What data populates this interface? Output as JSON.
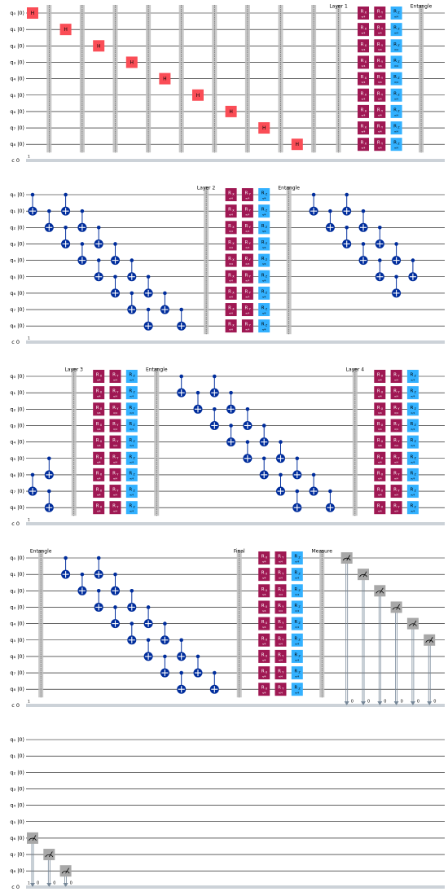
{
  "qubits": [
    "q₀ |0⟩",
    "q₁ |0⟩",
    "q₂ |0⟩",
    "q₃ |0⟩",
    "q₄ |0⟩",
    "q₅ |0⟩",
    "q₆ |0⟩",
    "q₇ |0⟩",
    "q₈ |0⟩"
  ],
  "clbit_label": "c 0",
  "bundle_label": "1",
  "panels": [
    {
      "ops": [
        {
          "op": "h",
          "label": "H",
          "q": 0
        },
        {
          "op": "barrier"
        },
        {
          "op": "h",
          "label": "H",
          "q": 1
        },
        {
          "op": "barrier"
        },
        {
          "op": "h",
          "label": "H",
          "q": 2
        },
        {
          "op": "barrier"
        },
        {
          "op": "h",
          "label": "H",
          "q": 3
        },
        {
          "op": "barrier"
        },
        {
          "op": "h",
          "label": "H",
          "q": 4
        },
        {
          "op": "barrier"
        },
        {
          "op": "h",
          "label": "H",
          "q": 5
        },
        {
          "op": "barrier"
        },
        {
          "op": "h",
          "label": "H",
          "q": 6
        },
        {
          "op": "barrier"
        },
        {
          "op": "h",
          "label": "H",
          "q": 7
        },
        {
          "op": "barrier"
        },
        {
          "op": "h",
          "label": "H",
          "q": 8
        },
        {
          "op": "barrier"
        },
        {
          "op": "barrier",
          "label": "Layer 1"
        },
        {
          "op": "rot",
          "label": "R",
          "sub": "X",
          "param": "π/4"
        },
        {
          "op": "rot",
          "label": "R",
          "sub": "Y",
          "param": "π/4"
        },
        {
          "op": "rot",
          "label": "R",
          "sub": "Z",
          "param": "π/4"
        },
        {
          "op": "barrier",
          "label": "Entangle"
        }
      ]
    },
    {
      "ops": [
        {
          "op": "cx",
          "c": 0,
          "t": 1
        },
        {
          "op": "cx",
          "c": 1,
          "t": 2
        },
        {
          "op": "cx",
          "c": 2,
          "t": 3
        },
        {
          "op": "cx",
          "c": 3,
          "t": 4
        },
        {
          "op": "cx",
          "c": 4,
          "t": 5
        },
        {
          "op": "cx",
          "c": 5,
          "t": 6
        },
        {
          "op": "cx",
          "c": 6,
          "t": 7
        },
        {
          "op": "cx",
          "c": 7,
          "t": 8
        },
        {
          "op": "cx",
          "c": 0,
          "t": 1
        },
        {
          "op": "cx",
          "c": 1,
          "t": 2
        },
        {
          "op": "cx",
          "c": 2,
          "t": 3
        },
        {
          "op": "cx",
          "c": 3,
          "t": 4
        },
        {
          "op": "cx",
          "c": 4,
          "t": 5
        },
        {
          "op": "cx",
          "c": 5,
          "t": 6
        },
        {
          "op": "cx",
          "c": 6,
          "t": 7
        },
        {
          "op": "cx",
          "c": 7,
          "t": 8
        },
        {
          "op": "barrier",
          "label": "Layer 2"
        },
        {
          "op": "rot",
          "label": "R",
          "sub": "X",
          "param": "π/4"
        },
        {
          "op": "rot",
          "label": "R",
          "sub": "Y",
          "param": "π/4"
        },
        {
          "op": "rot",
          "label": "R",
          "sub": "Z",
          "param": "π/4"
        },
        {
          "op": "barrier",
          "label": "Entangle"
        },
        {
          "op": "cx",
          "c": 0,
          "t": 1
        },
        {
          "op": "cx",
          "c": 1,
          "t": 2
        },
        {
          "op": "cx",
          "c": 2,
          "t": 3
        },
        {
          "op": "cx",
          "c": 3,
          "t": 4
        },
        {
          "op": "cx",
          "c": 4,
          "t": 5
        },
        {
          "op": "cx",
          "c": 5,
          "t": 6
        },
        {
          "op": "cx",
          "c": 0,
          "t": 1
        },
        {
          "op": "cx",
          "c": 1,
          "t": 2
        },
        {
          "op": "cx",
          "c": 2,
          "t": 3
        },
        {
          "op": "cx",
          "c": 3,
          "t": 4
        },
        {
          "op": "cx",
          "c": 4,
          "t": 5
        }
      ]
    },
    {
      "ops": [
        {
          "op": "cx",
          "c": 6,
          "t": 7
        },
        {
          "op": "cx",
          "c": 7,
          "t": 8
        },
        {
          "op": "cx",
          "c": 5,
          "t": 6
        },
        {
          "op": "barrier",
          "label": "Layer 3"
        },
        {
          "op": "rot",
          "label": "R",
          "sub": "X",
          "param": "π/4"
        },
        {
          "op": "rot",
          "label": "R",
          "sub": "Y",
          "param": "π/4"
        },
        {
          "op": "rot",
          "label": "R",
          "sub": "Z",
          "param": "π/4"
        },
        {
          "op": "barrier",
          "label": "Entangle"
        },
        {
          "op": "cx",
          "c": 0,
          "t": 1
        },
        {
          "op": "cx",
          "c": 1,
          "t": 2
        },
        {
          "op": "cx",
          "c": 2,
          "t": 3
        },
        {
          "op": "cx",
          "c": 3,
          "t": 4
        },
        {
          "op": "cx",
          "c": 4,
          "t": 5
        },
        {
          "op": "cx",
          "c": 5,
          "t": 6
        },
        {
          "op": "cx",
          "c": 6,
          "t": 7
        },
        {
          "op": "cx",
          "c": 7,
          "t": 8
        },
        {
          "op": "cx",
          "c": 0,
          "t": 1
        },
        {
          "op": "cx",
          "c": 1,
          "t": 2
        },
        {
          "op": "cx",
          "c": 2,
          "t": 3
        },
        {
          "op": "cx",
          "c": 3,
          "t": 4
        },
        {
          "op": "cx",
          "c": 4,
          "t": 5
        },
        {
          "op": "cx",
          "c": 5,
          "t": 6
        },
        {
          "op": "cx",
          "c": 6,
          "t": 7
        },
        {
          "op": "cx",
          "c": 7,
          "t": 8
        },
        {
          "op": "barrier",
          "label": "Layer 4"
        },
        {
          "op": "rot",
          "label": "R",
          "sub": "X",
          "param": "π/4"
        },
        {
          "op": "rot",
          "label": "R",
          "sub": "Y",
          "param": "π/4"
        },
        {
          "op": "rot",
          "label": "R",
          "sub": "Z",
          "param": "π/4"
        }
      ]
    },
    {
      "ops": [
        {
          "op": "barrier",
          "label": "Entangle"
        },
        {
          "op": "cx",
          "c": 0,
          "t": 1
        },
        {
          "op": "cx",
          "c": 1,
          "t": 2
        },
        {
          "op": "cx",
          "c": 2,
          "t": 3
        },
        {
          "op": "cx",
          "c": 3,
          "t": 4
        },
        {
          "op": "cx",
          "c": 4,
          "t": 5
        },
        {
          "op": "cx",
          "c": 5,
          "t": 6
        },
        {
          "op": "cx",
          "c": 6,
          "t": 7
        },
        {
          "op": "cx",
          "c": 7,
          "t": 8
        },
        {
          "op": "cx",
          "c": 0,
          "t": 1
        },
        {
          "op": "cx",
          "c": 1,
          "t": 2
        },
        {
          "op": "cx",
          "c": 2,
          "t": 3
        },
        {
          "op": "cx",
          "c": 3,
          "t": 4
        },
        {
          "op": "cx",
          "c": 4,
          "t": 5
        },
        {
          "op": "cx",
          "c": 5,
          "t": 6
        },
        {
          "op": "cx",
          "c": 6,
          "t": 7
        },
        {
          "op": "cx",
          "c": 7,
          "t": 8
        },
        {
          "op": "barrier",
          "label": "Final"
        },
        {
          "op": "rot",
          "label": "R",
          "sub": "X",
          "param": "π/4"
        },
        {
          "op": "rot",
          "label": "R",
          "sub": "Y",
          "param": "π/4"
        },
        {
          "op": "rot",
          "label": "R",
          "sub": "Z",
          "param": "π/4"
        },
        {
          "op": "barrier",
          "label": "Measure"
        },
        {
          "op": "measure",
          "q": 0,
          "bit": "0"
        },
        {
          "op": "measure",
          "q": 1,
          "bit": "0"
        },
        {
          "op": "measure",
          "q": 2,
          "bit": "0"
        },
        {
          "op": "measure",
          "q": 3,
          "bit": "0"
        },
        {
          "op": "measure",
          "q": 4,
          "bit": "0"
        },
        {
          "op": "measure",
          "q": 5,
          "bit": "0"
        }
      ]
    },
    {
      "ops": [
        {
          "op": "measure",
          "q": 6,
          "bit": "0"
        },
        {
          "op": "measure",
          "q": 7,
          "bit": "0"
        },
        {
          "op": "measure",
          "q": 8,
          "bit": "0"
        }
      ]
    }
  ]
}
